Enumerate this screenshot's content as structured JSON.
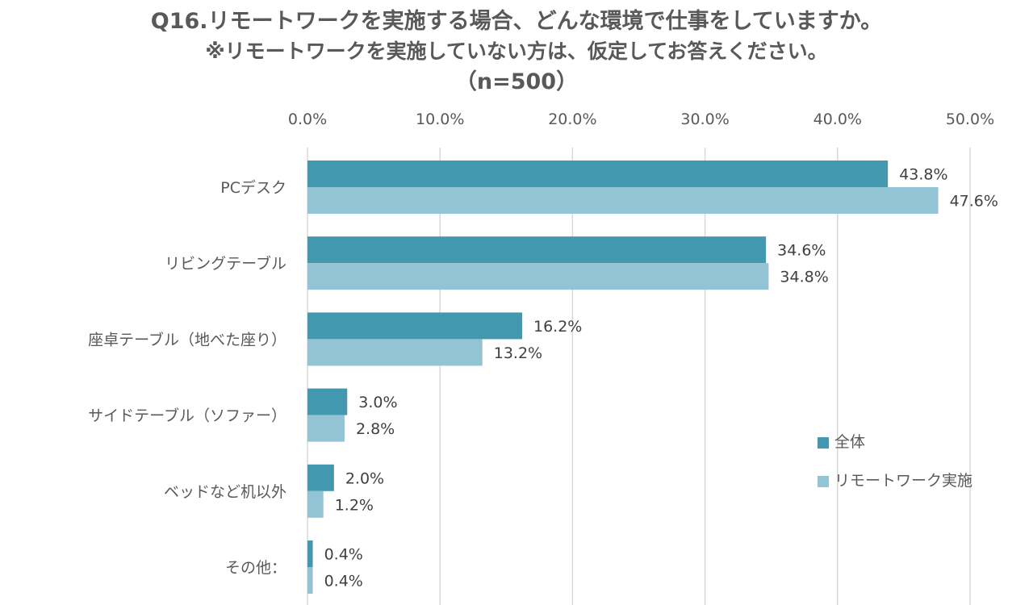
{
  "chart_data": {
    "type": "bar",
    "orientation": "horizontal",
    "title": "Q16.リモートワークを実施する場合、どんな環境で仕事をしていますか。",
    "subtitle": "※リモートワークを実施していない方は、仮定してお答えください。",
    "sample_note": "（n=500）",
    "categories": [
      "PCデスク",
      "リビングテーブル",
      "座卓テーブル（地べた座り）",
      "サイドテーブル（ソファー）",
      "ベッドなど机以外",
      "その他："
    ],
    "series": [
      {
        "name": "全体",
        "color": "#4298ae",
        "values": [
          43.8,
          34.6,
          16.2,
          3.0,
          2.0,
          0.4
        ]
      },
      {
        "name": "リモートワーク実施",
        "color": "#93c4d5",
        "values": [
          47.6,
          34.8,
          13.2,
          2.8,
          1.2,
          0.4
        ]
      }
    ],
    "value_labels": [
      [
        "43.8%",
        "34.6%",
        "16.2%",
        "3.0%",
        "2.0%",
        "0.4%"
      ],
      [
        "47.6%",
        "34.8%",
        "13.2%",
        "2.8%",
        "1.2%",
        "0.4%"
      ]
    ],
    "x_ticks": [
      0,
      10,
      20,
      30,
      40,
      50
    ],
    "x_tick_labels": [
      "0.0%",
      "10.0%",
      "20.0%",
      "30.0%",
      "40.0%",
      "50.0%"
    ],
    "xlim": [
      0,
      50
    ],
    "xaxis_position": "top",
    "grid": true,
    "legend_position": "right"
  }
}
